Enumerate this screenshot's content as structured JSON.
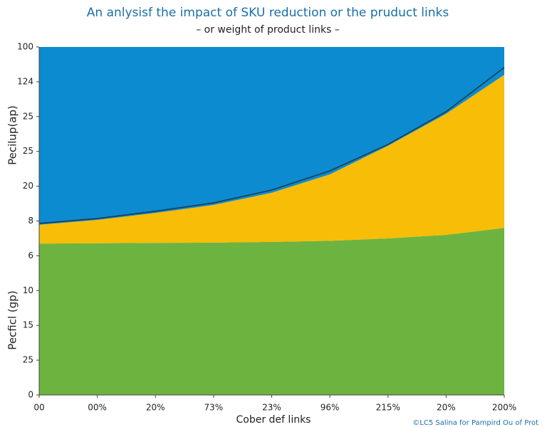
{
  "chart_data": {
    "type": "stacked_area",
    "title": "An anlysisf the impact of SKU reduction or the pruduct links",
    "subtitle": "– or weight of product links –",
    "y_label_upper": "Pecilup(ap)",
    "y_label_lower": "Pecficl (gp)",
    "x_label": "Cober def links",
    "watermark": "©LC5 Salina for Pampird Ou of Prot",
    "x": [
      0,
      1,
      2,
      3,
      4,
      5,
      6,
      7,
      8
    ],
    "xlim": [
      0,
      8
    ],
    "xticks": [
      {
        "value": 0,
        "label": "00"
      },
      {
        "value": 1,
        "label": "00%"
      },
      {
        "value": 2,
        "label": "20%"
      },
      {
        "value": 3,
        "label": "73%"
      },
      {
        "value": 4,
        "label": "23%"
      },
      {
        "value": 5,
        "label": "96%"
      },
      {
        "value": 6,
        "label": "215%"
      },
      {
        "value": 7,
        "label": "20%"
      },
      {
        "value": 8,
        "label": "200%"
      }
    ],
    "ylim": [
      0,
      100
    ],
    "yticks": [
      0,
      {
        "value": 10,
        "label": "25"
      },
      {
        "value": 20,
        "label": "15"
      },
      {
        "value": 30,
        "label": "10"
      },
      {
        "value": 40,
        "label": "6"
      },
      {
        "value": 50,
        "label": "8"
      },
      {
        "value": 60,
        "label": "20"
      },
      {
        "value": 70,
        "label": "25"
      },
      {
        "value": 80,
        "label": "25"
      },
      {
        "value": 90,
        "label": "124"
      },
      100
    ],
    "series": [
      {
        "color": "#6db33f",
        "values": [
          43.5,
          43.6,
          43.7,
          43.8,
          44.0,
          44.3,
          45.0,
          46.0,
          48.0
        ]
      },
      {
        "color": "#f8bd07",
        "values": [
          5.4,
          6.7,
          8.6,
          10.8,
          14.1,
          19.1,
          26.6,
          34.8,
          44.0
        ]
      },
      {
        "color": "#0c8bd0",
        "values": [
          51.1,
          49.7,
          47.7,
          45.4,
          41.9,
          36.6,
          28.4,
          19.2,
          8.0
        ]
      }
    ],
    "line": {
      "color": "#1f3b4d",
      "values": [
        49.3,
        50.7,
        52.8,
        55.2,
        58.9,
        64.4,
        72.0,
        81.4,
        94.1
      ]
    }
  }
}
